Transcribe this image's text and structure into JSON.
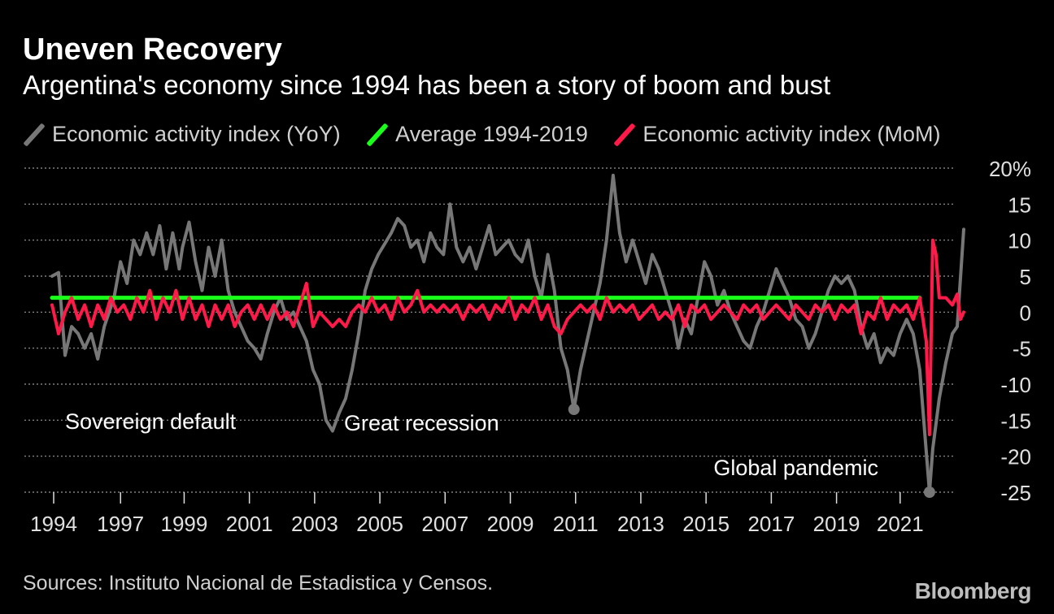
{
  "header": {
    "title": "Uneven Recovery",
    "subtitle": "Argentina's economy since 1994 has been a story of boom and bust"
  },
  "legend": [
    {
      "label": "Economic activity index (YoY)",
      "color": "#777777"
    },
    {
      "label": "Average 1994-2019",
      "color": "#1aff1a"
    },
    {
      "label": "Economic activity index (MoM)",
      "color": "#ff1a4a"
    }
  ],
  "footer": {
    "source": "Sources: Instituto Nacional de Estadistica y Censos.",
    "logo": "Bloomberg"
  },
  "chart_data": {
    "type": "line",
    "y_ticks": [
      "20%",
      "15",
      "10",
      "5",
      "0",
      "-5",
      "-10",
      "-15",
      "-20",
      "-25"
    ],
    "x_ticks": [
      "1994",
      "1997",
      "1999",
      "2001",
      "2003",
      "2005",
      "2007",
      "2009",
      "2011",
      "2013",
      "2015",
      "2017",
      "2019",
      "2021"
    ],
    "xlim": [
      1994.0,
      2021.7
    ],
    "ylim": [
      -25,
      20
    ],
    "grid": true,
    "grid_style": "dotted",
    "axis_side": "right",
    "annotations": [
      {
        "text": "Sovereign default",
        "x": 2002.2,
        "y": -16
      },
      {
        "text": "Great recession",
        "x": 2009.5,
        "y": -13.5
      },
      {
        "text": "Global pandemic",
        "x": 2020.3,
        "y": -25
      }
    ],
    "series": [
      {
        "name": "Economic activity index (YoY)",
        "color": "#777777",
        "points": [
          [
            1994.0,
            5
          ],
          [
            1994.2,
            5.5
          ],
          [
            1994.4,
            -6
          ],
          [
            1994.6,
            -2
          ],
          [
            1994.8,
            -3
          ],
          [
            1995.0,
            -5
          ],
          [
            1995.2,
            -3
          ],
          [
            1995.4,
            -6.5
          ],
          [
            1995.6,
            -2
          ],
          [
            1995.9,
            2
          ],
          [
            1996.1,
            7
          ],
          [
            1996.3,
            4
          ],
          [
            1996.5,
            10
          ],
          [
            1996.7,
            8
          ],
          [
            1996.9,
            11
          ],
          [
            1997.1,
            8
          ],
          [
            1997.3,
            12
          ],
          [
            1997.5,
            6
          ],
          [
            1997.7,
            11
          ],
          [
            1997.9,
            6
          ],
          [
            1998.0,
            9
          ],
          [
            1998.2,
            12.5
          ],
          [
            1998.4,
            7
          ],
          [
            1998.6,
            3
          ],
          [
            1998.8,
            9
          ],
          [
            1999.0,
            5
          ],
          [
            1999.2,
            10
          ],
          [
            1999.4,
            3
          ],
          [
            1999.6,
            0
          ],
          [
            1999.8,
            -2
          ],
          [
            2000.0,
            -4
          ],
          [
            2000.2,
            -5
          ],
          [
            2000.4,
            -6.5
          ],
          [
            2000.6,
            -3
          ],
          [
            2000.8,
            0
          ],
          [
            2001.0,
            2
          ],
          [
            2001.2,
            -1
          ],
          [
            2001.4,
            0
          ],
          [
            2001.6,
            -2
          ],
          [
            2001.8,
            -4
          ],
          [
            2002.0,
            -8
          ],
          [
            2002.2,
            -10
          ],
          [
            2002.4,
            -15
          ],
          [
            2002.6,
            -16.5
          ],
          [
            2002.8,
            -14
          ],
          [
            2003.0,
            -12
          ],
          [
            2003.2,
            -8
          ],
          [
            2003.4,
            -3
          ],
          [
            2003.6,
            3
          ],
          [
            2003.8,
            6
          ],
          [
            2004.0,
            8
          ],
          [
            2004.2,
            9.5
          ],
          [
            2004.4,
            11
          ],
          [
            2004.6,
            13
          ],
          [
            2004.8,
            12
          ],
          [
            2005.0,
            9
          ],
          [
            2005.2,
            10
          ],
          [
            2005.4,
            7
          ],
          [
            2005.6,
            11
          ],
          [
            2005.8,
            9
          ],
          [
            2006.0,
            8
          ],
          [
            2006.2,
            15
          ],
          [
            2006.4,
            9
          ],
          [
            2006.6,
            7
          ],
          [
            2006.8,
            9
          ],
          [
            2007.0,
            6
          ],
          [
            2007.2,
            9
          ],
          [
            2007.4,
            12
          ],
          [
            2007.6,
            8
          ],
          [
            2007.8,
            9
          ],
          [
            2008.0,
            10
          ],
          [
            2008.2,
            8
          ],
          [
            2008.4,
            7
          ],
          [
            2008.6,
            10
          ],
          [
            2008.8,
            5
          ],
          [
            2009.0,
            2
          ],
          [
            2009.2,
            8
          ],
          [
            2009.4,
            3
          ],
          [
            2009.6,
            -5
          ],
          [
            2009.8,
            -8
          ],
          [
            2010.0,
            -13.5
          ],
          [
            2010.2,
            -8
          ],
          [
            2010.4,
            -4
          ],
          [
            2010.6,
            0
          ],
          [
            2010.8,
            4
          ],
          [
            2011.0,
            10
          ],
          [
            2011.2,
            19
          ],
          [
            2011.4,
            11
          ],
          [
            2011.6,
            7
          ],
          [
            2011.8,
            10
          ],
          [
            2012.0,
            7
          ],
          [
            2012.2,
            4
          ],
          [
            2012.4,
            8
          ],
          [
            2012.6,
            6
          ],
          [
            2012.8,
            3
          ],
          [
            2013.0,
            0
          ],
          [
            2013.2,
            -5
          ],
          [
            2013.4,
            -1
          ],
          [
            2013.6,
            -3
          ],
          [
            2013.8,
            2
          ],
          [
            2014.0,
            7
          ],
          [
            2014.2,
            5
          ],
          [
            2014.4,
            1
          ],
          [
            2014.6,
            3
          ],
          [
            2014.8,
            0
          ],
          [
            2015.0,
            -2
          ],
          [
            2015.2,
            -4
          ],
          [
            2015.4,
            -5
          ],
          [
            2015.6,
            -2
          ],
          [
            2015.8,
            0
          ],
          [
            2016.0,
            3
          ],
          [
            2016.2,
            6
          ],
          [
            2016.4,
            4
          ],
          [
            2016.6,
            2
          ],
          [
            2016.8,
            -1
          ],
          [
            2017.0,
            -2
          ],
          [
            2017.2,
            -5
          ],
          [
            2017.4,
            -3
          ],
          [
            2017.6,
            0
          ],
          [
            2017.8,
            3
          ],
          [
            2018.0,
            5
          ],
          [
            2018.2,
            4
          ],
          [
            2018.4,
            5
          ],
          [
            2018.6,
            3
          ],
          [
            2018.8,
            -2
          ],
          [
            2019.0,
            -5
          ],
          [
            2019.2,
            -3
          ],
          [
            2019.4,
            -7
          ],
          [
            2019.6,
            -5
          ],
          [
            2019.8,
            -6
          ],
          [
            2020.0,
            -3
          ],
          [
            2020.2,
            -1
          ],
          [
            2020.4,
            -3
          ],
          [
            2020.6,
            -8
          ],
          [
            2020.9,
            -25
          ],
          [
            2021.0,
            -19
          ],
          [
            2021.2,
            -12
          ],
          [
            2021.4,
            -7
          ],
          [
            2021.6,
            -3
          ],
          [
            2021.75,
            -2
          ],
          [
            2021.95,
            11.5
          ]
        ]
      },
      {
        "name": "Average 1994-2019",
        "color": "#1aff1a",
        "points": [
          [
            1994.0,
            2
          ],
          [
            2020.6,
            2
          ]
        ]
      },
      {
        "name": "Economic activity index (MoM)",
        "color": "#ff1a4a",
        "points": [
          [
            1994.0,
            1
          ],
          [
            1994.2,
            -3
          ],
          [
            1994.4,
            0
          ],
          [
            1994.6,
            2
          ],
          [
            1994.8,
            -1
          ],
          [
            1995.0,
            1
          ],
          [
            1995.2,
            -2
          ],
          [
            1995.4,
            1
          ],
          [
            1995.6,
            -1
          ],
          [
            1995.8,
            2
          ],
          [
            1996.0,
            0
          ],
          [
            1996.2,
            1
          ],
          [
            1996.4,
            -1
          ],
          [
            1996.6,
            2
          ],
          [
            1996.8,
            0
          ],
          [
            1997.0,
            3
          ],
          [
            1997.2,
            -1
          ],
          [
            1997.4,
            2
          ],
          [
            1997.6,
            0
          ],
          [
            1997.8,
            3
          ],
          [
            1998.0,
            -1
          ],
          [
            1998.2,
            2
          ],
          [
            1998.4,
            -1
          ],
          [
            1998.6,
            1
          ],
          [
            1998.8,
            -2
          ],
          [
            1999.0,
            1
          ],
          [
            1999.2,
            -1
          ],
          [
            1999.4,
            1
          ],
          [
            1999.6,
            -2
          ],
          [
            1999.8,
            0
          ],
          [
            2000.0,
            1
          ],
          [
            2000.2,
            -1
          ],
          [
            2000.4,
            1
          ],
          [
            2000.6,
            -1
          ],
          [
            2000.8,
            1
          ],
          [
            2001.0,
            -1
          ],
          [
            2001.2,
            0
          ],
          [
            2001.4,
            -2
          ],
          [
            2001.6,
            1
          ],
          [
            2001.8,
            4
          ],
          [
            2002.0,
            -2
          ],
          [
            2002.2,
            0
          ],
          [
            2002.4,
            -1
          ],
          [
            2002.6,
            -2
          ],
          [
            2002.8,
            -1
          ],
          [
            2003.0,
            -2
          ],
          [
            2003.2,
            0
          ],
          [
            2003.4,
            1
          ],
          [
            2003.6,
            0
          ],
          [
            2003.8,
            2
          ],
          [
            2004.0,
            0
          ],
          [
            2004.2,
            1
          ],
          [
            2004.4,
            -1
          ],
          [
            2004.6,
            2
          ],
          [
            2004.8,
            0
          ],
          [
            2005.0,
            1
          ],
          [
            2005.2,
            3
          ],
          [
            2005.4,
            0
          ],
          [
            2005.6,
            1
          ],
          [
            2005.8,
            0
          ],
          [
            2006.0,
            1
          ],
          [
            2006.2,
            0
          ],
          [
            2006.4,
            1
          ],
          [
            2006.6,
            -1
          ],
          [
            2006.8,
            1
          ],
          [
            2007.0,
            0
          ],
          [
            2007.2,
            1
          ],
          [
            2007.4,
            -1
          ],
          [
            2007.6,
            1
          ],
          [
            2007.8,
            0
          ],
          [
            2008.0,
            2
          ],
          [
            2008.2,
            -1
          ],
          [
            2008.4,
            1
          ],
          [
            2008.6,
            0
          ],
          [
            2008.8,
            2
          ],
          [
            2009.0,
            -1
          ],
          [
            2009.2,
            1
          ],
          [
            2009.4,
            -2
          ],
          [
            2009.6,
            -3
          ],
          [
            2009.8,
            -1
          ],
          [
            2010.0,
            0
          ],
          [
            2010.2,
            1
          ],
          [
            2010.4,
            0
          ],
          [
            2010.6,
            1
          ],
          [
            2010.8,
            -1
          ],
          [
            2011.0,
            2
          ],
          [
            2011.2,
            0
          ],
          [
            2011.4,
            1
          ],
          [
            2011.6,
            0
          ],
          [
            2011.8,
            1
          ],
          [
            2012.0,
            -1
          ],
          [
            2012.2,
            0
          ],
          [
            2012.4,
            1
          ],
          [
            2012.6,
            -1
          ],
          [
            2012.8,
            0
          ],
          [
            2013.0,
            -1
          ],
          [
            2013.2,
            1
          ],
          [
            2013.4,
            -2
          ],
          [
            2013.6,
            1
          ],
          [
            2013.8,
            0
          ],
          [
            2014.0,
            1
          ],
          [
            2014.2,
            -1
          ],
          [
            2014.4,
            0
          ],
          [
            2014.6,
            1
          ],
          [
            2014.8,
            0
          ],
          [
            2015.0,
            -1
          ],
          [
            2015.2,
            1
          ],
          [
            2015.4,
            0
          ],
          [
            2015.6,
            1
          ],
          [
            2015.8,
            -1
          ],
          [
            2016.0,
            0
          ],
          [
            2016.2,
            1
          ],
          [
            2016.4,
            0
          ],
          [
            2016.6,
            -1
          ],
          [
            2016.8,
            1
          ],
          [
            2017.0,
            0
          ],
          [
            2017.2,
            -1
          ],
          [
            2017.4,
            1
          ],
          [
            2017.6,
            0
          ],
          [
            2017.8,
            1
          ],
          [
            2018.0,
            -1
          ],
          [
            2018.2,
            1
          ],
          [
            2018.4,
            0
          ],
          [
            2018.6,
            1
          ],
          [
            2018.8,
            -3
          ],
          [
            2019.0,
            0
          ],
          [
            2019.2,
            -1
          ],
          [
            2019.4,
            2
          ],
          [
            2019.6,
            -1
          ],
          [
            2019.8,
            1
          ],
          [
            2020.0,
            0
          ],
          [
            2020.2,
            1
          ],
          [
            2020.4,
            -1
          ],
          [
            2020.6,
            2
          ],
          [
            2020.8,
            -4
          ],
          [
            2020.9,
            -17
          ],
          [
            2021.0,
            10
          ],
          [
            2021.1,
            8
          ],
          [
            2021.2,
            2
          ],
          [
            2021.4,
            2
          ],
          [
            2021.6,
            1
          ],
          [
            2021.75,
            2.5
          ],
          [
            2021.85,
            -1
          ],
          [
            2021.95,
            0
          ]
        ]
      }
    ],
    "markers": [
      {
        "series": "Economic activity index (YoY)",
        "x": 2010.0,
        "y": -13.5
      },
      {
        "series": "Economic activity index (YoY)",
        "x": 2020.9,
        "y": -25
      }
    ]
  }
}
